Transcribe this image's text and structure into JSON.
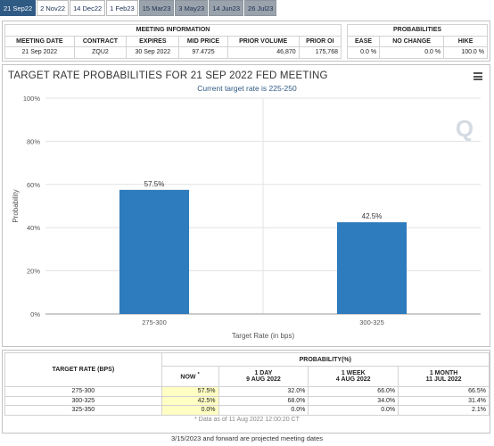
{
  "tabs": [
    {
      "label": "21 Sep22",
      "style": "active"
    },
    {
      "label": "2 Nov22",
      "style": "white"
    },
    {
      "label": "14 Dec22",
      "style": "white"
    },
    {
      "label": "1 Feb23",
      "style": "white"
    },
    {
      "label": "15 Mar23",
      "style": "grey"
    },
    {
      "label": "3 May23",
      "style": "grey"
    },
    {
      "label": "14 Jun23",
      "style": "grey"
    },
    {
      "label": "26 Jul23",
      "style": "grey"
    }
  ],
  "meeting_info": {
    "group_label": "MEETING INFORMATION",
    "headers": [
      "MEETING DATE",
      "CONTRACT",
      "EXPIRES",
      "MID PRICE",
      "PRIOR VOLUME",
      "PRIOR OI"
    ],
    "row": [
      "21 Sep 2022",
      "ZQU2",
      "30 Sep 2022",
      "97.4725",
      "46,870",
      "175,768"
    ]
  },
  "probabilities_top": {
    "group_label": "PROBABILITIES",
    "headers": [
      "EASE",
      "NO CHANGE",
      "HIKE"
    ],
    "row": [
      "0.0 %",
      "0.0 %",
      "100.0 %"
    ]
  },
  "chart_data": {
    "type": "bar",
    "title": "TARGET RATE PROBABILITIES FOR 21 SEP 2022 FED MEETING",
    "subtitle": "Current target rate is 225-250",
    "categories": [
      "275-300",
      "300-325"
    ],
    "values": [
      57.5,
      42.5
    ],
    "data_labels": [
      "57.5%",
      "42.5%"
    ],
    "xlabel": "Target Rate (in bps)",
    "ylabel": "Probability",
    "ylim": [
      0,
      100
    ],
    "yticks": [
      0,
      20,
      40,
      60,
      80,
      100
    ],
    "ytick_labels": [
      "0%",
      "20%",
      "40%",
      "60%",
      "80%",
      "100%"
    ],
    "grid": true,
    "bar_color": "#2e7bbd"
  },
  "bottom_table": {
    "col1_header": "TARGET RATE (BPS)",
    "group_header": "PROBABILITY(%)",
    "now_label": "NOW",
    "now_mark": "*",
    "periods": [
      {
        "label": "1 DAY",
        "date": "9 AUG 2022"
      },
      {
        "label": "1 WEEK",
        "date": "4 AUG 2022"
      },
      {
        "label": "1 MONTH",
        "date": "11 JUL 2022"
      }
    ],
    "rows": [
      {
        "rate": "275-300",
        "now": "57.5%",
        "d1": "32.0%",
        "w1": "66.0%",
        "m1": "66.5%"
      },
      {
        "rate": "300-325",
        "now": "42.5%",
        "d1": "68.0%",
        "w1": "34.0%",
        "m1": "31.4%"
      },
      {
        "rate": "325-350",
        "now": "0.0%",
        "d1": "0.0%",
        "w1": "0.0%",
        "m1": "2.1%"
      }
    ],
    "note": "* Data as of 11 Aug 2022 12:00:20 CT"
  },
  "footnote": "3/15/2023 and forward are projected meeting dates",
  "icons": {
    "menu": "hamburger-menu-icon",
    "watermark": "q-logo-icon"
  }
}
